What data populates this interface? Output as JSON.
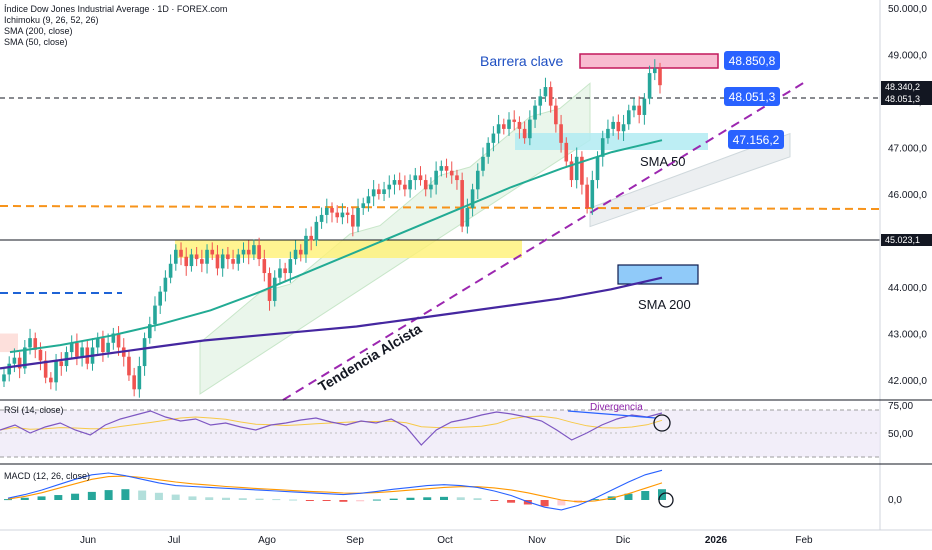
{
  "header": {
    "title": "Índice Dow Jones Industrial Average · 1D · FOREX.com",
    "indicators": [
      "Ichimoku (9, 26, 52, 26)",
      "SMA (200, close)",
      "SMA (50, close)"
    ]
  },
  "rsi_panel": {
    "title": "RSI (14, close)",
    "annotation": "Divergencia"
  },
  "macd_panel": {
    "title": "MACD (12, 26, close)"
  },
  "colors": {
    "up": "#26a69a",
    "down": "#ef5350",
    "sma50": "#22ab94",
    "sma200": "#4527a0",
    "trend": "#9c27b0",
    "support": "#f7931a",
    "label_blue": "#2962ff",
    "highlight_yellow": "#fff176",
    "highlight_cyan": "#b2ebf2",
    "highlight_pink": "#f8bbd0"
  },
  "chart_data": {
    "type": "candlestick",
    "symbol": "Índice Dow Jones Industrial Average",
    "timeframe": "1D",
    "x_ticks": [
      "Jun",
      "Jul",
      "Ago",
      "Sep",
      "Oct",
      "Nov",
      "Dic",
      "2026",
      "Feb"
    ],
    "y_ticks": [
      "42.000,0",
      "43.000,0",
      "44.000,0",
      "45.000,0",
      "46.000,0",
      "47.000,0",
      "48.000,0",
      "49.000,0",
      "50.000,0"
    ],
    "ylim": [
      41600,
      50100
    ],
    "price_labels": {
      "last": "48.340,2",
      "level_dashed": "48.051,3",
      "level_solid": "45.023,1",
      "resistance": "48.850,8",
      "mid": "48.051,3",
      "support": "47.156,2"
    },
    "levels": {
      "last": 48340.2,
      "dashed": 48051.3,
      "solid": 45023.1,
      "support_dashed": 45700,
      "old_support": 43850
    },
    "annotations": {
      "barrier": "Barrera clave",
      "sma50": "SMA 50",
      "sma200": "SMA 200",
      "trend": "Tendencia Alcista"
    },
    "closes": [
      42120,
      42350,
      42480,
      42250,
      42700,
      42900,
      42650,
      42420,
      42050,
      41950,
      42400,
      42300,
      42600,
      42800,
      42500,
      42700,
      42350,
      42700,
      42900,
      42600,
      42800,
      43000,
      42700,
      42500,
      42100,
      41800,
      42300,
      42900,
      43200,
      43600,
      43900,
      44200,
      44500,
      44800,
      44650,
      44450,
      44700,
      44600,
      44500,
      44800,
      44700,
      44400,
      44700,
      44600,
      44500,
      44700,
      44800,
      44700,
      44900,
      44600,
      44300,
      43700,
      44200,
      44400,
      44300,
      44600,
      44800,
      44700,
      45100,
      45000,
      45400,
      45550,
      45700,
      45600,
      45500,
      45600,
      45550,
      45300,
      45700,
      45800,
      45950,
      46100,
      46000,
      46100,
      46200,
      46300,
      46200,
      46100,
      46300,
      46400,
      46300,
      46100,
      46200,
      46500,
      46600,
      46500,
      46400,
      46300,
      45300,
      45700,
      46100,
      46500,
      46800,
      47100,
      47300,
      47500,
      47400,
      47600,
      47550,
      47400,
      47200,
      47600,
      47900,
      48100,
      48300,
      47900,
      47500,
      47100,
      46700,
      46300,
      46800,
      46200,
      45700,
      46300,
      46800,
      47200,
      47400,
      47550,
      47350,
      47500,
      47800,
      47900,
      47700,
      48050,
      48600,
      48700,
      48340
    ],
    "sma50": [
      42600,
      42750,
      42950,
      43200,
      43500,
      43900,
      44350,
      44800,
      45250,
      45700,
      46150,
      46550,
      46900,
      47156
    ],
    "sma200": [
      42250,
      42400,
      42550,
      42700,
      42850,
      42950,
      43050,
      43150,
      43300,
      43450,
      43600,
      43750,
      43950,
      44200
    ],
    "rsi": {
      "ylim": [
        25,
        80
      ],
      "y_ticks": [
        "50,00",
        "75,00"
      ],
      "values": [
        55,
        60,
        52,
        58,
        62,
        55,
        50,
        60,
        66,
        70,
        74,
        68,
        64,
        66,
        60,
        62,
        58,
        55,
        60,
        62,
        65,
        67,
        63,
        60,
        64,
        62,
        66,
        58,
        40,
        55,
        63,
        66,
        70,
        73,
        71,
        68,
        64,
        55,
        45,
        52,
        60,
        66,
        70,
        68,
        72
      ]
    },
    "macd": {
      "y_ticks": [
        "0,0"
      ],
      "hist": [
        10,
        25,
        40,
        55,
        70,
        90,
        110,
        120,
        105,
        80,
        60,
        40,
        30,
        25,
        20,
        15,
        10,
        5,
        -5,
        -10,
        -20,
        -15,
        5,
        15,
        25,
        30,
        35,
        30,
        20,
        -10,
        -30,
        -50,
        -70,
        -60,
        -30,
        10,
        40,
        70,
        100,
        120
      ],
      "line": [
        20,
        60,
        110,
        170,
        230,
        280,
        300,
        270,
        230,
        190,
        160,
        150,
        140,
        130,
        120,
        110,
        100,
        90,
        80,
        70,
        60,
        75,
        95,
        120,
        140,
        160,
        170,
        160,
        140,
        100,
        50,
        -20,
        -80,
        -110,
        -60,
        20,
        110,
        200,
        280,
        330
      ],
      "signal": [
        10,
        40,
        80,
        130,
        180,
        230,
        260,
        265,
        250,
        225,
        200,
        180,
        165,
        150,
        138,
        126,
        115,
        105,
        96,
        88,
        78,
        76,
        82,
        95,
        110,
        125,
        140,
        148,
        148,
        135,
        112,
        80,
        40,
        0,
        -20,
        -10,
        20,
        70,
        130,
        190
      ]
    }
  }
}
